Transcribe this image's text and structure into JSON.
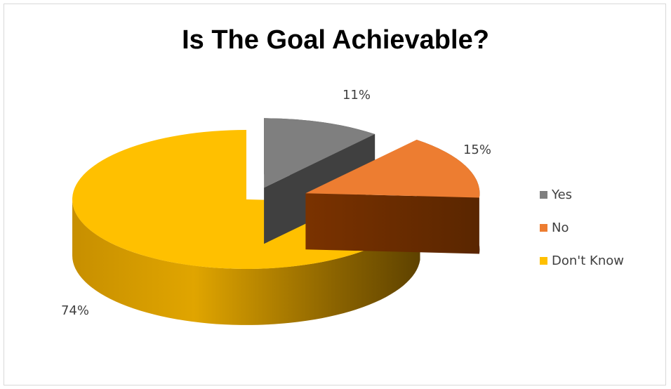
{
  "chart_data": {
    "type": "pie",
    "style": "3d-exploded",
    "title": "Is The Goal Achievable?",
    "categories": [
      "Yes",
      "No",
      "Don't Know"
    ],
    "values": [
      11,
      15,
      74
    ],
    "labels": [
      "11%",
      "15%",
      "74%"
    ],
    "colors": [
      "#7f7f7f",
      "#ed7d31",
      "#ffc000"
    ],
    "legend_position": "right"
  }
}
